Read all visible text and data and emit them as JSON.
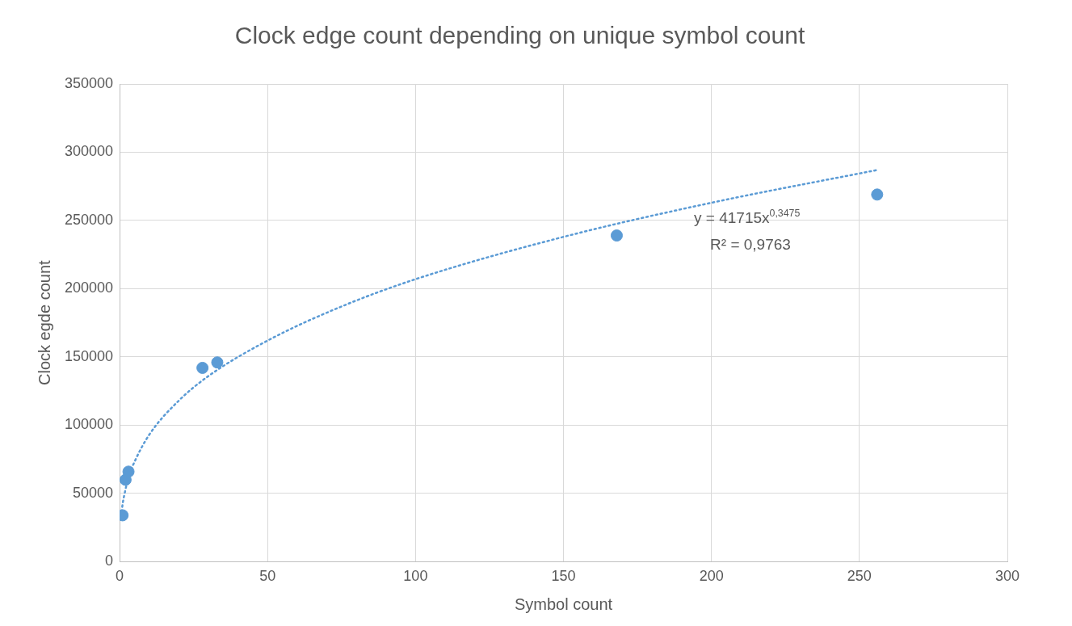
{
  "chart_data": {
    "type": "scatter",
    "title": "Clock edge count depending on unique symbol count",
    "xlabel": "Symbol count",
    "ylabel": "Clock egde count",
    "xlim": [
      0,
      300
    ],
    "xticks": [
      0,
      50,
      100,
      150,
      200,
      250,
      300
    ],
    "ylim": [
      0,
      350000
    ],
    "yticks": [
      0,
      50000,
      100000,
      150000,
      200000,
      250000,
      300000,
      350000
    ],
    "grid": true,
    "legend": false,
    "marker": "circle",
    "series": [
      {
        "color": "#5b9bd5",
        "x": [
          1,
          2,
          3,
          28,
          33,
          168,
          256
        ],
        "values": [
          34000,
          60000,
          66000,
          142000,
          146000,
          239000,
          269000
        ]
      },
      {
        "type": "line",
        "color": "#5b9bd5",
        "marker": "none",
        "line_style": "dotted",
        "x": [
          0.5,
          1,
          2,
          3,
          5,
          10,
          20,
          30,
          50,
          75,
          100,
          150,
          200,
          256
        ],
        "values": [
          33000,
          42000,
          53000,
          62000,
          73000,
          93000,
          118000,
          136000,
          162000,
          187000,
          207000,
          238000,
          263000,
          287000
        ]
      }
    ],
    "annotations": [
      "y = 41715x$^{0,3475}$",
      "R² = 0,9763"
    ]
  }
}
